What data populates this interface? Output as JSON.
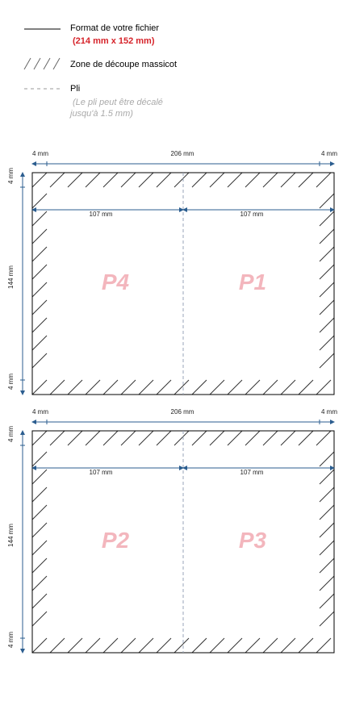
{
  "legend": [
    {
      "label": "Format de votre fichier",
      "detail": "(214 mm x 152 mm)"
    },
    {
      "label": "Zone de découpe massicot"
    },
    {
      "label": "Pli",
      "detail_lines": [
        "(Le pli peut être décalé",
        "jusqu'à 1.5 mm)"
      ]
    }
  ],
  "panels": [
    {
      "top_left": "4 mm",
      "top_center": "206 mm",
      "top_right": "4 mm",
      "half_left": "107 mm",
      "half_right": "107 mm",
      "side_top": "4 mm",
      "side_center": "144 mm",
      "side_bottom": "4 mm",
      "page_left": "P4",
      "page_right": "P1"
    },
    {
      "top_left": "4 mm",
      "top_center": "206 mm",
      "top_right": "4 mm",
      "half_left": "107 mm",
      "half_right": "107 mm",
      "side_top": "4 mm",
      "side_center": "144 mm",
      "side_bottom": "4 mm",
      "page_left": "P2",
      "page_right": "P3"
    }
  ]
}
